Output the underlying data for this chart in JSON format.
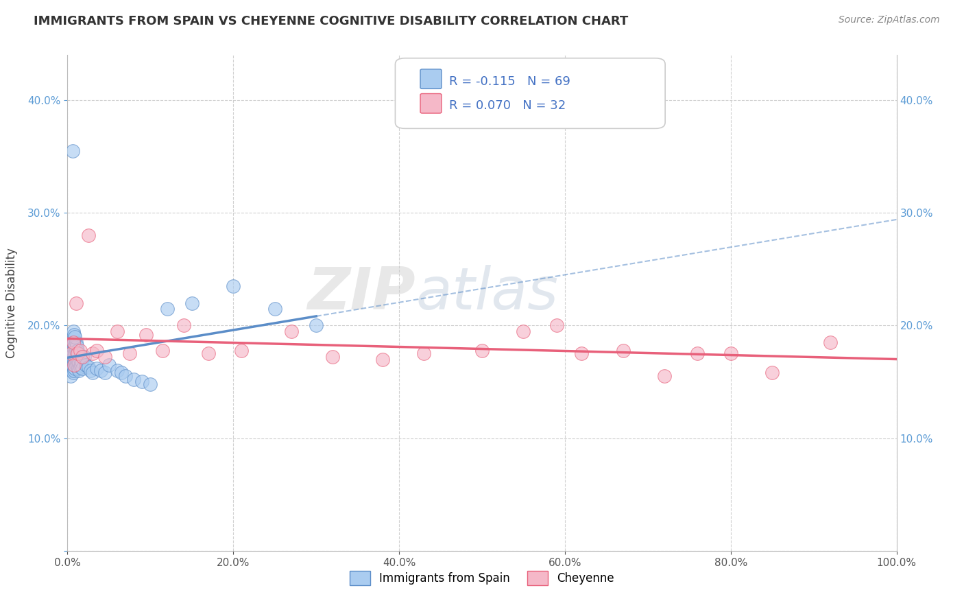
{
  "title": "IMMIGRANTS FROM SPAIN VS CHEYENNE COGNITIVE DISABILITY CORRELATION CHART",
  "source": "Source: ZipAtlas.com",
  "ylabel": "Cognitive Disability",
  "legend_label1": "Immigrants from Spain",
  "legend_label2": "Cheyenne",
  "R1": -0.115,
  "N1": 69,
  "R2": 0.07,
  "N2": 32,
  "color1": "#AACCF0",
  "color2": "#F5B8C8",
  "line_color1": "#5B8DC8",
  "line_color2": "#E8607A",
  "background": "#FFFFFF",
  "xlim": [
    0,
    1.0
  ],
  "ylim": [
    0.0,
    0.44
  ],
  "xticks": [
    0.0,
    0.2,
    0.4,
    0.6,
    0.8,
    1.0
  ],
  "yticks_left": [
    0.0,
    0.1,
    0.2,
    0.3,
    0.4
  ],
  "ytick_labels_left": [
    "",
    "10.0%",
    "20.0%",
    "30.0%",
    "40.0%"
  ],
  "ytick_labels_right": [
    "",
    "10.0%",
    "20.0%",
    "30.0%",
    "40.0%"
  ],
  "watermark_zip": "ZIP",
  "watermark_atlas": "atlas",
  "blue_points_x": [
    0.003,
    0.004,
    0.004,
    0.005,
    0.005,
    0.005,
    0.006,
    0.006,
    0.006,
    0.006,
    0.007,
    0.007,
    0.007,
    0.007,
    0.007,
    0.007,
    0.008,
    0.008,
    0.008,
    0.008,
    0.008,
    0.009,
    0.009,
    0.009,
    0.009,
    0.01,
    0.01,
    0.01,
    0.01,
    0.011,
    0.011,
    0.011,
    0.012,
    0.012,
    0.012,
    0.013,
    0.013,
    0.013,
    0.014,
    0.014,
    0.015,
    0.015,
    0.016,
    0.017,
    0.018,
    0.02,
    0.022,
    0.025,
    0.028,
    0.03,
    0.035,
    0.04,
    0.045,
    0.05,
    0.06,
    0.065,
    0.07,
    0.08,
    0.09,
    0.1,
    0.12,
    0.15,
    0.2,
    0.25,
    0.3,
    0.006,
    0.007,
    0.008,
    0.009
  ],
  "blue_points_y": [
    0.17,
    0.155,
    0.175,
    0.16,
    0.17,
    0.18,
    0.165,
    0.172,
    0.178,
    0.185,
    0.158,
    0.163,
    0.17,
    0.175,
    0.18,
    0.188,
    0.16,
    0.168,
    0.173,
    0.18,
    0.185,
    0.162,
    0.17,
    0.175,
    0.182,
    0.165,
    0.172,
    0.178,
    0.185,
    0.168,
    0.175,
    0.182,
    0.165,
    0.172,
    0.178,
    0.162,
    0.168,
    0.175,
    0.16,
    0.168,
    0.163,
    0.17,
    0.165,
    0.168,
    0.162,
    0.172,
    0.165,
    0.163,
    0.16,
    0.158,
    0.162,
    0.16,
    0.158,
    0.165,
    0.16,
    0.158,
    0.155,
    0.152,
    0.15,
    0.148,
    0.215,
    0.22,
    0.235,
    0.215,
    0.2,
    0.355,
    0.195,
    0.192,
    0.19
  ],
  "pink_points_x": [
    0.005,
    0.007,
    0.008,
    0.01,
    0.012,
    0.015,
    0.018,
    0.025,
    0.03,
    0.035,
    0.045,
    0.06,
    0.075,
    0.095,
    0.115,
    0.14,
    0.17,
    0.21,
    0.27,
    0.32,
    0.38,
    0.43,
    0.5,
    0.55,
    0.59,
    0.62,
    0.67,
    0.72,
    0.76,
    0.8,
    0.85,
    0.92
  ],
  "pink_points_y": [
    0.175,
    0.185,
    0.165,
    0.22,
    0.175,
    0.178,
    0.172,
    0.28,
    0.175,
    0.178,
    0.172,
    0.195,
    0.175,
    0.192,
    0.178,
    0.2,
    0.175,
    0.178,
    0.195,
    0.172,
    0.17,
    0.175,
    0.178,
    0.195,
    0.2,
    0.175,
    0.178,
    0.155,
    0.175,
    0.175,
    0.158,
    0.185
  ]
}
